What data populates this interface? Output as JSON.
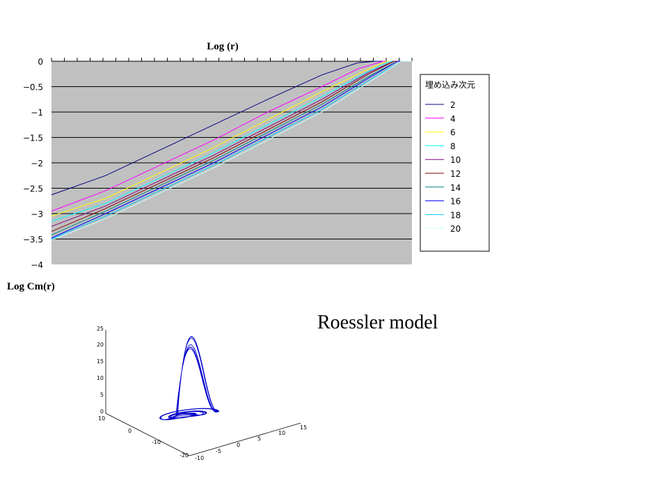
{
  "chart_data": [
    {
      "type": "line",
      "title": "Log (r)",
      "xlabel": "",
      "ylabel": "Log Cm(r)",
      "ylim": [
        -4,
        0
      ],
      "yticks": [
        "0",
        "−0.5",
        "−1",
        "−1.5",
        "−2",
        "−2.5",
        "−3",
        "−3.5",
        "−4"
      ],
      "xlim": [
        0,
        1
      ],
      "x_tick_count": 28,
      "grid": true,
      "plot_background": "#c0c0c0",
      "legend_title": "埋め込み次元",
      "legend_position": "right",
      "series": [
        {
          "name": "2",
          "color": "#000080",
          "x": [
            0.0,
            0.15,
            0.3,
            0.45,
            0.6,
            0.75,
            0.85,
            0.9,
            1.0
          ],
          "values": [
            -2.63,
            -2.25,
            -1.75,
            -1.25,
            -0.75,
            -0.27,
            -0.03,
            0.0,
            0.0
          ]
        },
        {
          "name": "4",
          "color": "#ff00ff",
          "x": [
            0.0,
            0.15,
            0.3,
            0.45,
            0.6,
            0.75,
            0.85,
            0.92,
            1.0
          ],
          "values": [
            -2.95,
            -2.55,
            -2.05,
            -1.55,
            -1.0,
            -0.5,
            -0.15,
            0.0,
            0.0
          ]
        },
        {
          "name": "6",
          "color": "#ffff00",
          "x": [
            0.0,
            0.15,
            0.3,
            0.45,
            0.6,
            0.75,
            0.88,
            0.93,
            1.0
          ],
          "values": [
            -3.05,
            -2.7,
            -2.2,
            -1.7,
            -1.15,
            -0.6,
            -0.15,
            0.0,
            0.0
          ]
        },
        {
          "name": "8",
          "color": "#00ffff",
          "x": [
            0.0,
            0.15,
            0.3,
            0.45,
            0.6,
            0.75,
            0.88,
            0.94,
            1.0
          ],
          "values": [
            -3.15,
            -2.8,
            -2.3,
            -1.8,
            -1.25,
            -0.7,
            -0.2,
            0.0,
            0.0
          ]
        },
        {
          "name": "10",
          "color": "#800080",
          "x": [
            0.0,
            0.15,
            0.3,
            0.45,
            0.6,
            0.75,
            0.88,
            0.95,
            1.0
          ],
          "values": [
            -3.25,
            -2.85,
            -2.35,
            -1.85,
            -1.3,
            -0.75,
            -0.22,
            0.0,
            0.0
          ]
        },
        {
          "name": "12",
          "color": "#800000",
          "x": [
            0.0,
            0.15,
            0.3,
            0.45,
            0.6,
            0.75,
            0.88,
            0.95,
            1.0
          ],
          "values": [
            -3.35,
            -2.9,
            -2.4,
            -1.9,
            -1.35,
            -0.8,
            -0.25,
            0.0,
            0.0
          ]
        },
        {
          "name": "14",
          "color": "#008080",
          "x": [
            0.0,
            0.15,
            0.3,
            0.45,
            0.6,
            0.75,
            0.88,
            0.96,
            1.0
          ],
          "values": [
            -3.42,
            -2.95,
            -2.45,
            -1.95,
            -1.4,
            -0.85,
            -0.3,
            0.0,
            0.0
          ]
        },
        {
          "name": "16",
          "color": "#0000ff",
          "x": [
            0.0,
            0.15,
            0.3,
            0.45,
            0.6,
            0.75,
            0.88,
            0.96,
            1.0
          ],
          "values": [
            -3.48,
            -3.0,
            -2.5,
            -2.0,
            -1.45,
            -0.9,
            -0.33,
            0.0,
            0.0
          ]
        },
        {
          "name": "18",
          "color": "#00ccff",
          "x": [
            0.0,
            0.15,
            0.3,
            0.45,
            0.6,
            0.75,
            0.88,
            0.97,
            1.0
          ],
          "values": [
            -3.5,
            -3.05,
            -2.55,
            -2.05,
            -1.5,
            -0.95,
            -0.38,
            0.0,
            0.0
          ]
        },
        {
          "name": "20",
          "color": "#ccffff",
          "x": [
            0.0,
            0.15,
            0.3,
            0.45,
            0.6,
            0.75,
            0.88,
            0.97,
            1.0
          ],
          "values": [
            -3.52,
            -3.1,
            -2.6,
            -2.1,
            -1.55,
            -1.0,
            -0.42,
            0.0,
            0.0
          ]
        }
      ]
    },
    {
      "type": "line",
      "title": "Roessler model",
      "subtype": "3d-attractor",
      "color": "#0000cc",
      "z_ticks": [
        "0",
        "5",
        "10",
        "15",
        "20",
        "25"
      ],
      "x_ticks": [
        "-10",
        "-5",
        "0",
        "5",
        "10",
        "15"
      ],
      "y_ticks": [
        "10",
        "0",
        "-10",
        "-20"
      ],
      "zlim": [
        0,
        25
      ],
      "xlim": [
        -10,
        15
      ],
      "ylim": [
        -20,
        10
      ]
    }
  ]
}
